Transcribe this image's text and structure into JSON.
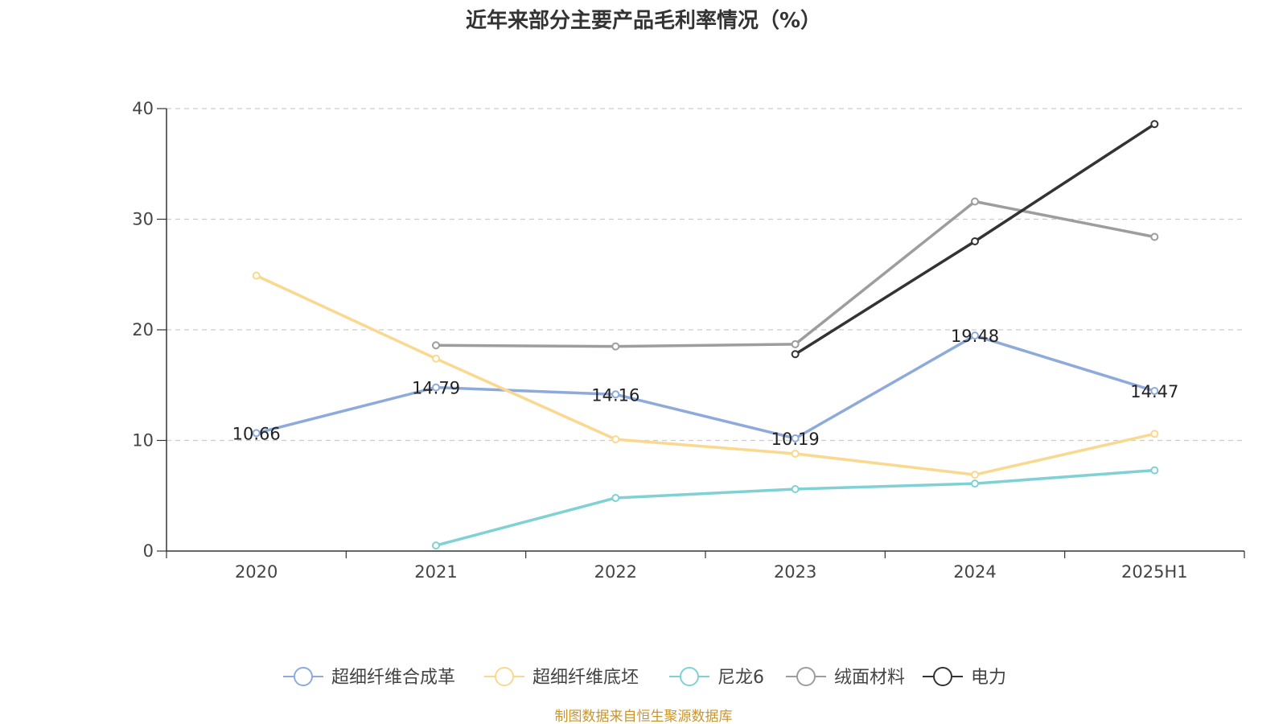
{
  "chart_data": {
    "type": "line",
    "title": "近年来部分主要产品毛利率情况（%）",
    "xlabel": "",
    "ylabel": "",
    "categories": [
      "2020",
      "2021",
      "2022",
      "2023",
      "2024",
      "2025H1"
    ],
    "ylim": [
      0,
      40
    ],
    "yticks": [
      "0",
      "10",
      "20",
      "30",
      "40"
    ],
    "grid": "horizontal dashed",
    "legend_position": "bottom",
    "series": [
      {
        "name": "超细纤维合成革",
        "color": "#8eaadb",
        "values": [
          10.66,
          14.79,
          14.16,
          10.19,
          19.48,
          14.47
        ],
        "labels": [
          "10.66",
          "14.79",
          "14.16",
          "10.19",
          "19.48",
          "14.47"
        ]
      },
      {
        "name": "超细纤维底坯",
        "color": "#fbd88f",
        "values": [
          24.9,
          17.4,
          10.1,
          8.8,
          6.9,
          10.6
        ],
        "labels": []
      },
      {
        "name": "尼龙6",
        "color": "#7fd1d4",
        "values": [
          null,
          0.5,
          4.8,
          5.6,
          6.1,
          7.3
        ],
        "labels": []
      },
      {
        "name": "绒面材料",
        "color": "#9d9d9d",
        "values": [
          null,
          18.6,
          18.5,
          18.7,
          31.6,
          28.4
        ],
        "labels": []
      },
      {
        "name": "电力",
        "color": "#333333",
        "values": [
          null,
          null,
          null,
          17.8,
          28.0,
          38.6
        ],
        "labels": []
      }
    ]
  },
  "footer": {
    "source": "制图数据来自恒生聚源数据库",
    "source_color": "#c9962c"
  }
}
